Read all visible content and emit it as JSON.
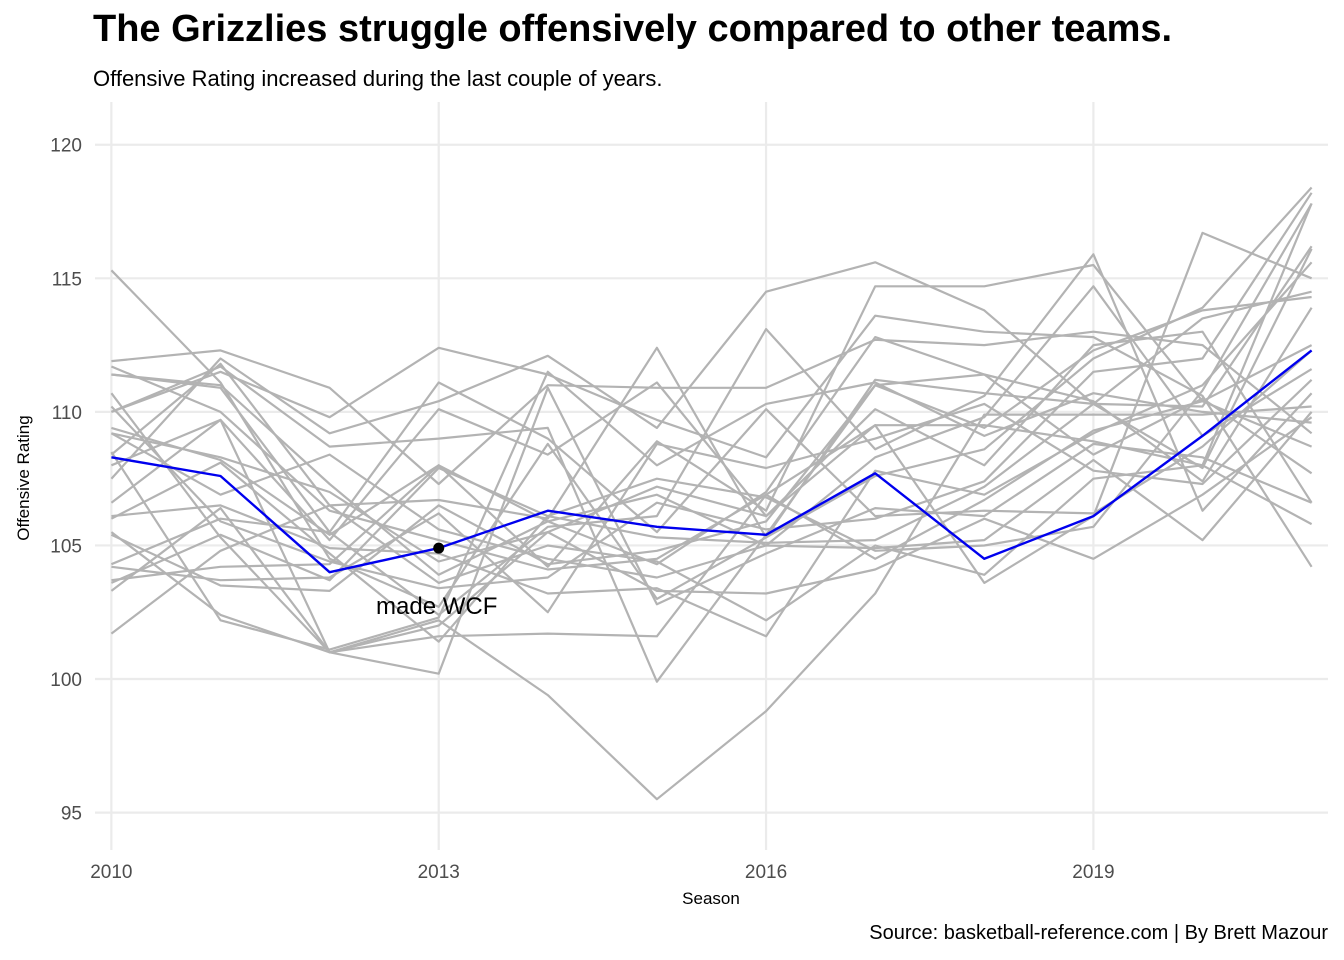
{
  "title": "The Grizzlies struggle offensively compared to other teams.",
  "subtitle": "Offensive Rating increased during the last couple of years.",
  "caption": "Source: basketball-reference.com | By Brett Mazour",
  "chart_data": {
    "type": "line",
    "xlabel": "Season",
    "ylabel": "Offensive Rating",
    "xlim": [
      2009.85,
      2021.15
    ],
    "ylim": [
      93.6,
      121.6
    ],
    "x_ticks": [
      2010,
      2013,
      2016,
      2019
    ],
    "y_ticks": [
      95,
      100,
      105,
      110,
      115,
      120
    ],
    "grid": true,
    "legend": "none",
    "x": [
      2010,
      2011,
      2012,
      2013,
      2014,
      2015,
      2016,
      2017,
      2018,
      2019,
      2020,
      2021
    ],
    "highlight_series": {
      "name": "Grizzlies",
      "color": "#0000ee",
      "values": [
        108.3,
        107.6,
        104.0,
        104.9,
        106.3,
        105.7,
        105.4,
        107.7,
        104.5,
        106.1,
        109.1,
        112.3
      ]
    },
    "other_series_color": "#b3b3b3",
    "other_series": [
      {
        "values": [
          115.3,
          111.1,
          104.5,
          102.7,
          108.8,
          103.0,
          105.3,
          111.2,
          110.7,
          110.3,
          110.2,
          116.2
        ]
      },
      {
        "values": [
          111.9,
          112.3,
          110.9,
          107.3,
          111.0,
          110.9,
          110.9,
          112.7,
          112.5,
          113.0,
          112.5,
          109.2
        ]
      },
      {
        "values": [
          111.4,
          110.9,
          105.5,
          102.4,
          105.7,
          106.1,
          113.1,
          108.6,
          110.6,
          115.9,
          106.3,
          110.7
        ]
      },
      {
        "values": [
          110.0,
          111.5,
          109.8,
          112.4,
          111.4,
          109.7,
          108.3,
          113.6,
          113.0,
          112.8,
          110.6,
          104.2
        ]
      },
      {
        "values": [
          108.4,
          111.8,
          106.5,
          106.7,
          106.0,
          112.4,
          105.3,
          107.6,
          108.6,
          112.0,
          113.9,
          118.4
        ]
      },
      {
        "values": [
          107.5,
          112.0,
          109.2,
          110.4,
          112.1,
          109.4,
          114.5,
          115.6,
          113.8,
          110.3,
          113.5,
          114.5
        ]
      },
      {
        "values": [
          109.4,
          108.2,
          105.4,
          108.0,
          104.2,
          108.9,
          106.3,
          114.7,
          114.7,
          115.5,
          110.4,
          108.7
        ]
      },
      {
        "values": [
          105.4,
          103.5,
          103.3,
          106.5,
          104.3,
          104.8,
          105.9,
          111.0,
          109.4,
          112.3,
          113.8,
          114.3
        ]
      },
      {
        "values": [
          103.7,
          104.2,
          104.3,
          108.0,
          105.9,
          104.3,
          107.0,
          112.8,
          111.4,
          110.4,
          107.4,
          113.9
        ]
      },
      {
        "values": [
          104.2,
          103.7,
          103.8,
          106.2,
          102.5,
          108.8,
          107.9,
          109.0,
          110.3,
          107.8,
          107.3,
          111.2
        ]
      },
      {
        "values": [
          106.6,
          109.7,
          101.0,
          101.6,
          101.7,
          101.6,
          106.9,
          109.5,
          109.5,
          108.9,
          108.0,
          117.8
        ]
      },
      {
        "values": [
          110.0,
          111.7,
          108.7,
          109.0,
          109.4,
          99.9,
          105.4,
          111.0,
          111.4,
          108.4,
          110.5,
          107.7
        ]
      },
      {
        "values": [
          108.5,
          102.2,
          101.1,
          102.3,
          111.5,
          108.0,
          110.3,
          111.1,
          109.1,
          110.7,
          110.0,
          109.6
        ]
      },
      {
        "values": [
          106.1,
          106.5,
          104.9,
          104.7,
          103.2,
          103.4,
          101.6,
          107.8,
          106.9,
          109.2,
          111.0,
          115.6
        ]
      },
      {
        "values": [
          103.3,
          106.4,
          101.0,
          102.2,
          99.4,
          95.5,
          98.8,
          103.2,
          109.9,
          109.9,
          109.9,
          110.2
        ]
      },
      {
        "values": [
          108.0,
          109.7,
          105.2,
          110.1,
          108.4,
          111.1,
          106.1,
          109.5,
          103.6,
          106.1,
          116.7,
          115.0
        ]
      },
      {
        "values": [
          110.7,
          105.3,
          101.0,
          100.2,
          110.9,
          102.8,
          104.7,
          106.4,
          106.1,
          108.8,
          108.3,
          106.6
        ]
      },
      {
        "values": [
          101.7,
          104.8,
          106.5,
          103.6,
          105.0,
          104.4,
          102.2,
          105.0,
          103.9,
          107.5,
          108.0,
          105.8
        ]
      },
      {
        "values": [
          109.2,
          106.9,
          108.4,
          105.6,
          104.5,
          103.8,
          105.0,
          104.9,
          105.2,
          108.2,
          105.2,
          110.0
        ]
      },
      {
        "values": [
          105.5,
          102.4,
          101.0,
          102.0,
          105.5,
          103.3,
          103.2,
          104.1,
          106.0,
          104.5,
          106.9,
          109.8
        ]
      },
      {
        "values": [
          111.7,
          110.0,
          106.3,
          105.2,
          104.1,
          104.5,
          106.9,
          104.5,
          106.7,
          109.3,
          110.4,
          112.5
        ]
      },
      {
        "values": [
          106.0,
          108.1,
          104.7,
          101.4,
          106.1,
          107.5,
          106.8,
          104.8,
          105.0,
          105.7,
          110.8,
          117.8
        ]
      },
      {
        "values": [
          110.2,
          105.9,
          104.4,
          103.4,
          103.8,
          106.6,
          105.6,
          106.0,
          107.4,
          111.5,
          112.0,
          118.2
        ]
      },
      {
        "values": [
          104.3,
          106.0,
          105.5,
          111.1,
          109.0,
          105.5,
          110.1,
          106.1,
          106.3,
          106.2,
          108.7,
          112.3
        ]
      },
      {
        "values": [
          103.6,
          105.4,
          103.7,
          107.9,
          106.1,
          105.3,
          105.1,
          105.2,
          107.2,
          110.3,
          107.9,
          116.1
        ]
      },
      {
        "values": [
          109.2,
          108.3,
          107.0,
          104.4,
          105.5,
          107.2,
          106.1,
          110.1,
          108.0,
          112.5,
          113.0,
          106.6
        ]
      },
      {
        "values": [
          111.4,
          111.0,
          107.3,
          103.9,
          105.9,
          106.9,
          105.0,
          108.3,
          109.8,
          114.7,
          109.1,
          111.6
        ]
      }
    ],
    "annotation": {
      "label": "made WCF",
      "x": 2013,
      "y": 104.9
    }
  }
}
